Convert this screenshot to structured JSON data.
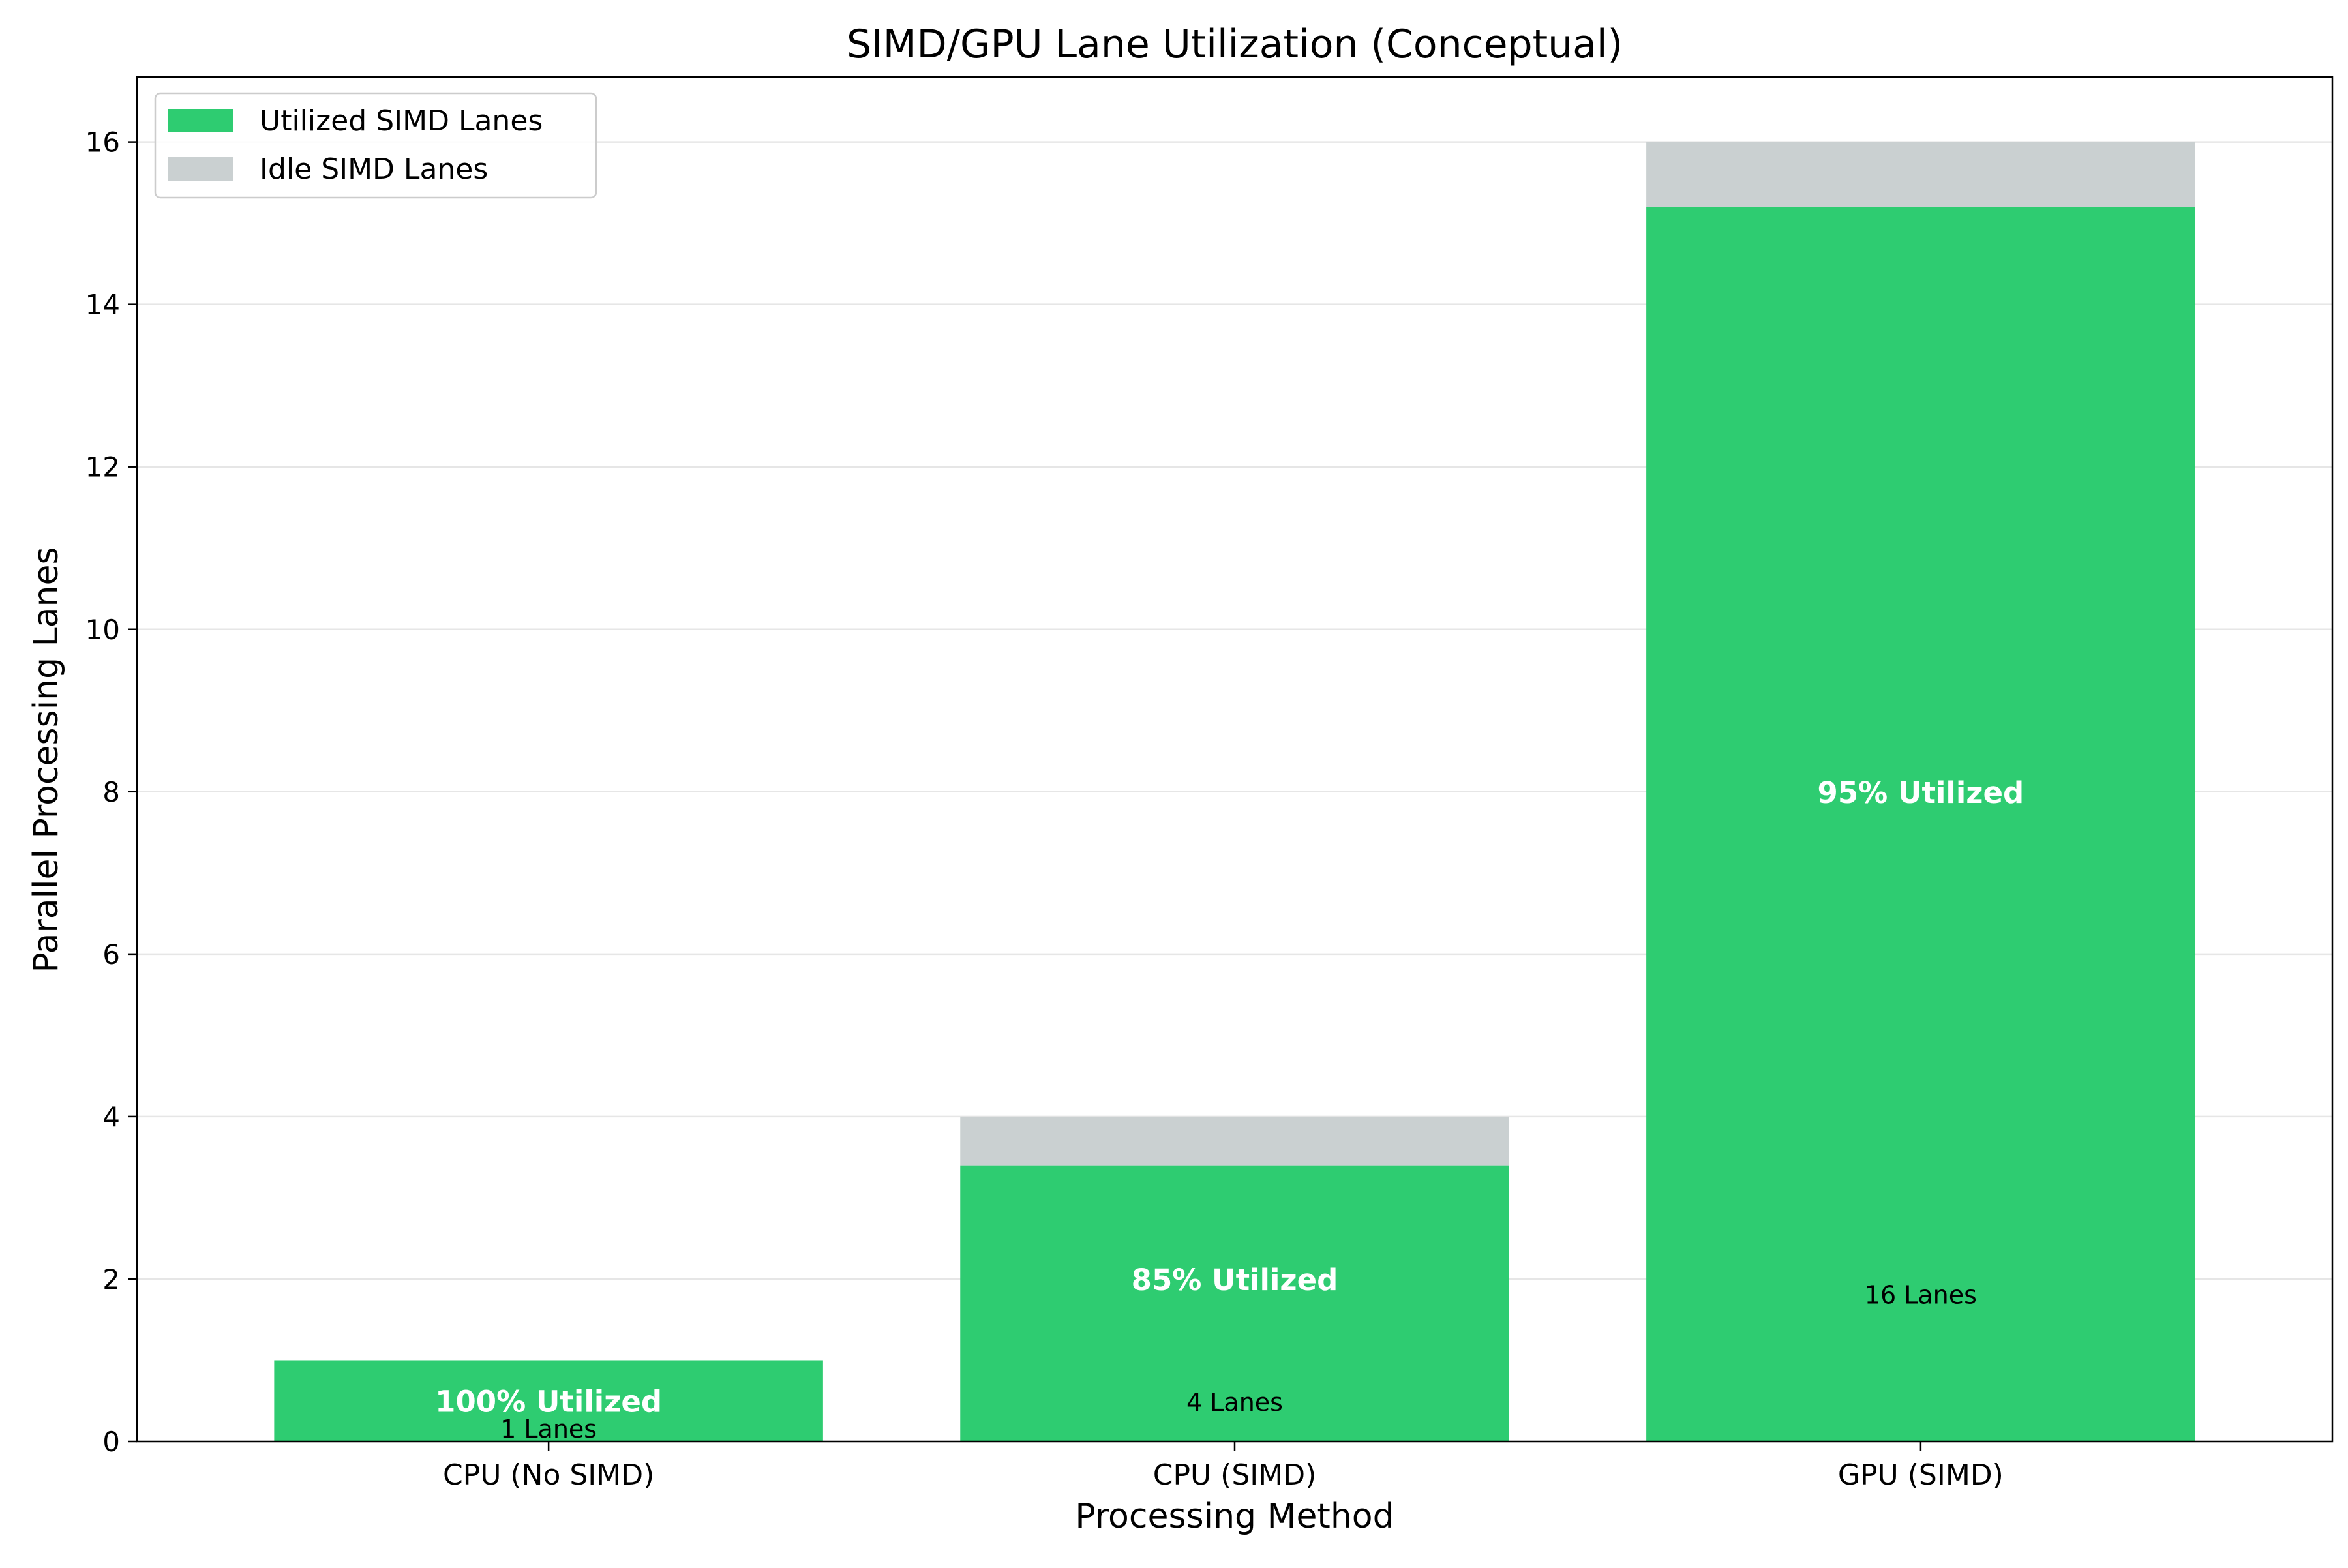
{
  "chart_data": {
    "type": "bar",
    "stacked": true,
    "title": "SIMD/GPU Lane Utilization (Conceptual)",
    "xlabel": "Processing Method",
    "ylabel": "Parallel Processing Lanes",
    "categories": [
      "CPU (No SIMD)",
      "CPU (SIMD)",
      "GPU (SIMD)"
    ],
    "series": [
      {
        "name": "Utilized SIMD Lanes",
        "values": [
          1.0,
          3.4,
          15.2
        ],
        "color": "#2ecc71"
      },
      {
        "name": "Idle SIMD Lanes",
        "values": [
          0.0,
          0.6,
          0.8
        ],
        "color": "#cad0d1"
      }
    ],
    "utilization_labels": [
      "100% Utilized",
      "85% Utilized",
      "95% Utilized"
    ],
    "lane_labels": [
      "1 Lanes",
      "4 Lanes",
      "16 Lanes"
    ],
    "y_ticks": [
      0,
      2,
      4,
      6,
      8,
      10,
      12,
      14,
      16
    ],
    "ylim": [
      0,
      16.8
    ],
    "grid": "horizontal",
    "legend_position": "top-left"
  }
}
